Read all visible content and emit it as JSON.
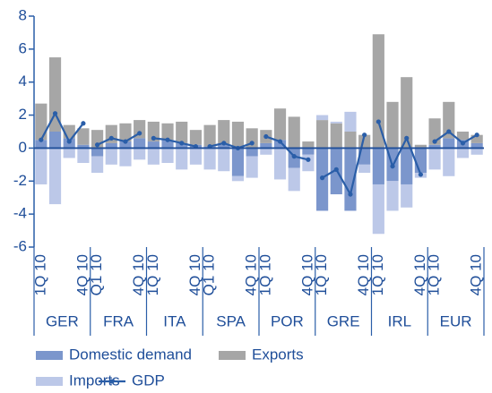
{
  "chart_data": {
    "type": "bar-line",
    "groups": [
      "GER",
      "FRA",
      "ITA",
      "SPA",
      "POR",
      "GRE",
      "IRL",
      "EUR"
    ],
    "categories": [
      "1Q 10",
      null,
      null,
      "4Q 10",
      "Q1 10",
      null,
      null,
      "4Q 10",
      "1Q 10",
      null,
      null,
      "4Q 10",
      "Q1 10",
      null,
      null,
      "4Q 10",
      "1Q 10",
      null,
      null,
      "4Q 10",
      "1Q 10",
      null,
      null,
      "4Q 10",
      "1Q 10",
      null,
      null,
      "4Q 10",
      "1Q 10",
      null,
      null,
      "4Q 10"
    ],
    "series": [
      {
        "name": "Domestic demand",
        "color": "#7b96cc",
        "kind": "bar",
        "values": [
          0.5,
          1.0,
          0.6,
          0.2,
          -0.5,
          0.3,
          0.4,
          0.6,
          0.4,
          0.5,
          0.3,
          0.2,
          0.1,
          0.2,
          -1.7,
          -0.5,
          0.3,
          0.5,
          -1.2,
          -0.4,
          -3.8,
          -2.8,
          -3.8,
          -1.0,
          -2.2,
          -2.0,
          -2.2,
          -1.5,
          0.2,
          0.6,
          0.5,
          0.3
        ]
      },
      {
        "name": "Exports",
        "color": "#a6a6a6",
        "kind": "bar",
        "values": [
          2.2,
          4.5,
          0.8,
          1.0,
          1.1,
          1.1,
          1.1,
          1.1,
          1.2,
          1.0,
          1.3,
          0.9,
          1.3,
          1.5,
          1.6,
          1.2,
          0.8,
          1.9,
          1.9,
          0.4,
          1.7,
          1.5,
          1.0,
          0.8,
          6.9,
          2.8,
          4.3,
          0.2,
          1.6,
          2.2,
          0.5,
          0.5
        ]
      },
      {
        "name": "Imports",
        "color": "#bcc8e8",
        "kind": "bar",
        "values": [
          -2.2,
          -3.4,
          -0.6,
          -0.9,
          -1.0,
          -1.0,
          -1.1,
          -0.7,
          -1.0,
          -0.9,
          -1.3,
          -1.0,
          -1.3,
          -1.4,
          -0.3,
          -1.3,
          -0.4,
          -1.9,
          -1.4,
          -1.0,
          0.3,
          0.1,
          1.2,
          -0.5,
          -3.0,
          -1.8,
          -1.4,
          -0.3,
          -1.3,
          -1.7,
          -0.6,
          -0.4
        ]
      },
      {
        "name": "GDP",
        "color": "#2a5ea8",
        "kind": "line",
        "values": [
          0.5,
          2.1,
          0.4,
          1.5,
          0.2,
          0.6,
          0.4,
          0.9,
          0.6,
          0.5,
          0.3,
          0.1,
          0.1,
          0.3,
          0.0,
          0.3,
          0.7,
          0.4,
          -0.5,
          -0.7,
          -1.8,
          -1.3,
          -2.8,
          0.8,
          1.6,
          -1.1,
          0.6,
          -1.6,
          0.4,
          1.0,
          0.3,
          0.8
        ]
      }
    ],
    "ylim": [
      -6,
      8
    ],
    "yticks": [
      -6,
      -4,
      -2,
      0,
      2,
      4,
      6,
      8
    ]
  }
}
